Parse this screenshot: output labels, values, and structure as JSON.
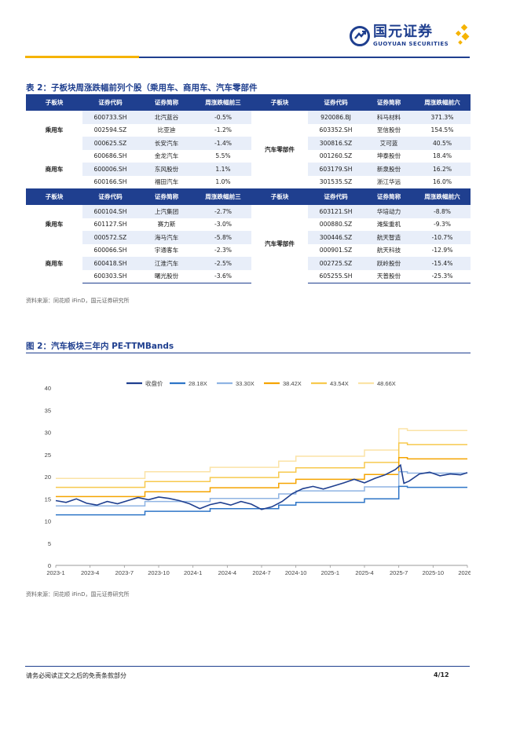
{
  "header": {
    "logo_cn": "国元证券",
    "logo_en": "GUOYUAN SECURITIES"
  },
  "table2": {
    "title": "表 2：子板块周涨跌幅前列个股（乘用车、商用车、汽车零部件",
    "headers": {
      "left": [
        "子板块",
        "证券代码",
        "证券简称",
        "周涨跌幅前三"
      ],
      "right": [
        "子板块",
        "证券代码",
        "证券简称",
        "周涨跌幅前六"
      ]
    },
    "headers_bottom": {
      "left": [
        "子板块",
        "证券代码",
        "证券简称",
        "周涨跌幅前三"
      ],
      "right": [
        "子板块",
        "证券代码",
        "证券简称",
        "周涨跌幅前六"
      ]
    },
    "top_groups": {
      "passenger": "乘用车",
      "commercial": "商用车",
      "parts": "汽车零部件"
    },
    "top_rows": [
      {
        "code": "600733.SH",
        "name": "北汽蓝谷",
        "chg": "-0.5%",
        "code2": "920086.BJ",
        "name2": "科马材料",
        "chg2": "371.3%"
      },
      {
        "code": "002594.SZ",
        "name": "比亚迪",
        "chg": "-1.2%",
        "code2": "603352.SH",
        "name2": "至信股份",
        "chg2": "154.5%"
      },
      {
        "code": "000625.SZ",
        "name": "长安汽车",
        "chg": "-1.4%",
        "code2": "300816.SZ",
        "name2": "艾可蓝",
        "chg2": "40.5%"
      },
      {
        "code": "600686.SH",
        "name": "金龙汽车",
        "chg": "5.5%",
        "code2": "001260.SZ",
        "name2": "坤泰股份",
        "chg2": "18.4%"
      },
      {
        "code": "600006.SH",
        "name": "东风股份",
        "chg": "1.1%",
        "code2": "603179.SH",
        "name2": "新泉股份",
        "chg2": "16.2%"
      },
      {
        "code": "600166.SH",
        "name": "福田汽车",
        "chg": "1.0%",
        "code2": "301535.SZ",
        "name2": "浙江华远",
        "chg2": "16.0%"
      }
    ],
    "bottom_groups": {
      "passenger": "乘用车",
      "commercial": "商用车",
      "parts": "汽车零部件"
    },
    "bottom_rows": [
      {
        "code": "600104.SH",
        "name": "上汽集团",
        "chg": "-2.7%",
        "code2": "603121.SH",
        "name2": "华培动力",
        "chg2": "-8.8%"
      },
      {
        "code": "601127.SH",
        "name": "赛力斯",
        "chg": "-3.0%",
        "code2": "000880.SZ",
        "name2": "潍柴重机",
        "chg2": "-9.3%"
      },
      {
        "code": "000572.SZ",
        "name": "海马汽车",
        "chg": "-5.8%",
        "code2": "300446.SZ",
        "name2": "航天智造",
        "chg2": "-10.7%"
      },
      {
        "code": "600066.SH",
        "name": "宇通客车",
        "chg": "-2.3%",
        "code2": "000901.SZ",
        "name2": "航天科技",
        "chg2": "-12.9%"
      },
      {
        "code": "600418.SH",
        "name": "江淮汽车",
        "chg": "-2.5%",
        "code2": "002725.SZ",
        "name2": "跃岭股份",
        "chg2": "-15.4%"
      },
      {
        "code": "600303.SH",
        "name": "曙光股份",
        "chg": "-3.6%",
        "code2": "605255.SH",
        "name2": "天普股份",
        "chg2": "-25.3%"
      }
    ],
    "source": "资料来源：同花顺 iFinD，国元证券研究所"
  },
  "figure2": {
    "title": "图 2：汽车板块三年内 PE-TTMBands",
    "source": "资料来源：同花顺 iFinD，国元证券研究所"
  },
  "chart_data": {
    "type": "line",
    "title": "汽车板块三年内 PE-TTMBands",
    "x_ticks": [
      "2023-1",
      "2023-4",
      "2023-7",
      "2023-10",
      "2024-1",
      "2024-4",
      "2024-7",
      "2024-10",
      "2025-1",
      "2025-4",
      "2025-7",
      "2025-10",
      "2026-1"
    ],
    "y_ticks": [
      0,
      5,
      10,
      15,
      20,
      25,
      30,
      35,
      40
    ],
    "ylim": [
      0,
      40
    ],
    "xlim": [
      0,
      12
    ],
    "legend_position": "top",
    "series": [
      {
        "name": "收盘价",
        "color": "#1f3f8f",
        "points": [
          [
            0,
            14.6
          ],
          [
            0.3,
            14.2
          ],
          [
            0.6,
            15.0
          ],
          [
            0.9,
            14.0
          ],
          [
            1.2,
            13.6
          ],
          [
            1.5,
            14.4
          ],
          [
            1.8,
            13.9
          ],
          [
            2.1,
            14.6
          ],
          [
            2.4,
            15.3
          ],
          [
            2.7,
            14.8
          ],
          [
            3.0,
            15.4
          ],
          [
            3.3,
            15.1
          ],
          [
            3.6,
            14.6
          ],
          [
            3.9,
            13.9
          ],
          [
            4.2,
            12.8
          ],
          [
            4.5,
            13.7
          ],
          [
            4.8,
            14.2
          ],
          [
            5.1,
            13.6
          ],
          [
            5.4,
            14.4
          ],
          [
            5.7,
            13.8
          ],
          [
            6.0,
            12.6
          ],
          [
            6.3,
            13.2
          ],
          [
            6.6,
            14.4
          ],
          [
            6.9,
            16.2
          ],
          [
            7.2,
            17.3
          ],
          [
            7.5,
            17.8
          ],
          [
            7.8,
            17.2
          ],
          [
            8.1,
            17.9
          ],
          [
            8.4,
            18.6
          ],
          [
            8.7,
            19.4
          ],
          [
            9.0,
            18.6
          ],
          [
            9.3,
            19.6
          ],
          [
            9.6,
            20.4
          ],
          [
            9.9,
            21.6
          ],
          [
            10.05,
            22.6
          ],
          [
            10.15,
            18.5
          ],
          [
            10.3,
            19.0
          ],
          [
            10.6,
            20.6
          ],
          [
            10.9,
            21.0
          ],
          [
            11.2,
            20.2
          ],
          [
            11.5,
            20.6
          ],
          [
            11.8,
            20.4
          ],
          [
            12.0,
            20.9
          ]
        ]
      },
      {
        "name": "28.18X",
        "color": "#2e75c7",
        "steps": [
          [
            0,
            11.4
          ],
          [
            2.6,
            11.4
          ],
          [
            2.6,
            12.2
          ],
          [
            4.5,
            12.2
          ],
          [
            4.5,
            12.8
          ],
          [
            6.5,
            12.8
          ],
          [
            6.5,
            13.6
          ],
          [
            7.0,
            13.6
          ],
          [
            7.0,
            14.2
          ],
          [
            9.0,
            14.2
          ],
          [
            9.0,
            15.0
          ],
          [
            10.0,
            15.0
          ],
          [
            10.0,
            17.8
          ],
          [
            10.25,
            17.8
          ],
          [
            10.25,
            17.6
          ],
          [
            12.0,
            17.6
          ]
        ]
      },
      {
        "name": "33.30X",
        "color": "#8fb4e3",
        "steps": [
          [
            0,
            13.4
          ],
          [
            2.6,
            13.4
          ],
          [
            2.6,
            14.4
          ],
          [
            4.5,
            14.4
          ],
          [
            4.5,
            15.1
          ],
          [
            6.5,
            15.1
          ],
          [
            6.5,
            16.1
          ],
          [
            7.0,
            16.1
          ],
          [
            7.0,
            16.8
          ],
          [
            9.0,
            16.8
          ],
          [
            9.0,
            17.7
          ],
          [
            10.0,
            17.7
          ],
          [
            10.0,
            21.1
          ],
          [
            10.25,
            21.1
          ],
          [
            10.25,
            20.8
          ],
          [
            12.0,
            20.8
          ]
        ]
      },
      {
        "name": "38.42X",
        "color": "#f5a400",
        "steps": [
          [
            0,
            15.5
          ],
          [
            2.6,
            15.5
          ],
          [
            2.6,
            16.6
          ],
          [
            4.5,
            16.6
          ],
          [
            4.5,
            17.5
          ],
          [
            6.5,
            17.5
          ],
          [
            6.5,
            18.5
          ],
          [
            7.0,
            18.5
          ],
          [
            7.0,
            19.4
          ],
          [
            9.0,
            19.4
          ],
          [
            9.0,
            20.5
          ],
          [
            10.0,
            20.5
          ],
          [
            10.0,
            24.3
          ],
          [
            10.25,
            24.3
          ],
          [
            10.25,
            24.0
          ],
          [
            12.0,
            24.0
          ]
        ]
      },
      {
        "name": "43.54X",
        "color": "#f7c94e",
        "steps": [
          [
            0,
            17.6
          ],
          [
            2.6,
            17.6
          ],
          [
            2.6,
            18.9
          ],
          [
            4.5,
            18.9
          ],
          [
            4.5,
            19.8
          ],
          [
            6.5,
            19.8
          ],
          [
            6.5,
            21.0
          ],
          [
            7.0,
            21.0
          ],
          [
            7.0,
            22.0
          ],
          [
            9.0,
            22.0
          ],
          [
            9.0,
            23.2
          ],
          [
            10.0,
            23.2
          ],
          [
            10.0,
            27.6
          ],
          [
            10.25,
            27.6
          ],
          [
            10.25,
            27.2
          ],
          [
            12.0,
            27.2
          ]
        ]
      },
      {
        "name": "48.66X",
        "color": "#fbe3a6",
        "steps": [
          [
            0,
            19.6
          ],
          [
            2.6,
            19.6
          ],
          [
            2.6,
            21.1
          ],
          [
            4.5,
            21.1
          ],
          [
            4.5,
            22.1
          ],
          [
            6.5,
            22.1
          ],
          [
            6.5,
            23.5
          ],
          [
            7.0,
            23.5
          ],
          [
            7.0,
            24.6
          ],
          [
            9.0,
            24.6
          ],
          [
            9.0,
            26.0
          ],
          [
            10.0,
            26.0
          ],
          [
            10.0,
            30.8
          ],
          [
            10.25,
            30.8
          ],
          [
            10.25,
            30.4
          ],
          [
            12.0,
            30.4
          ]
        ]
      }
    ],
    "spike": {
      "x": 10.05,
      "collapse_x": 10.25
    }
  },
  "footer": {
    "disclaimer": "请务必阅读正文之后的免责条款部分",
    "page": "4/12"
  }
}
